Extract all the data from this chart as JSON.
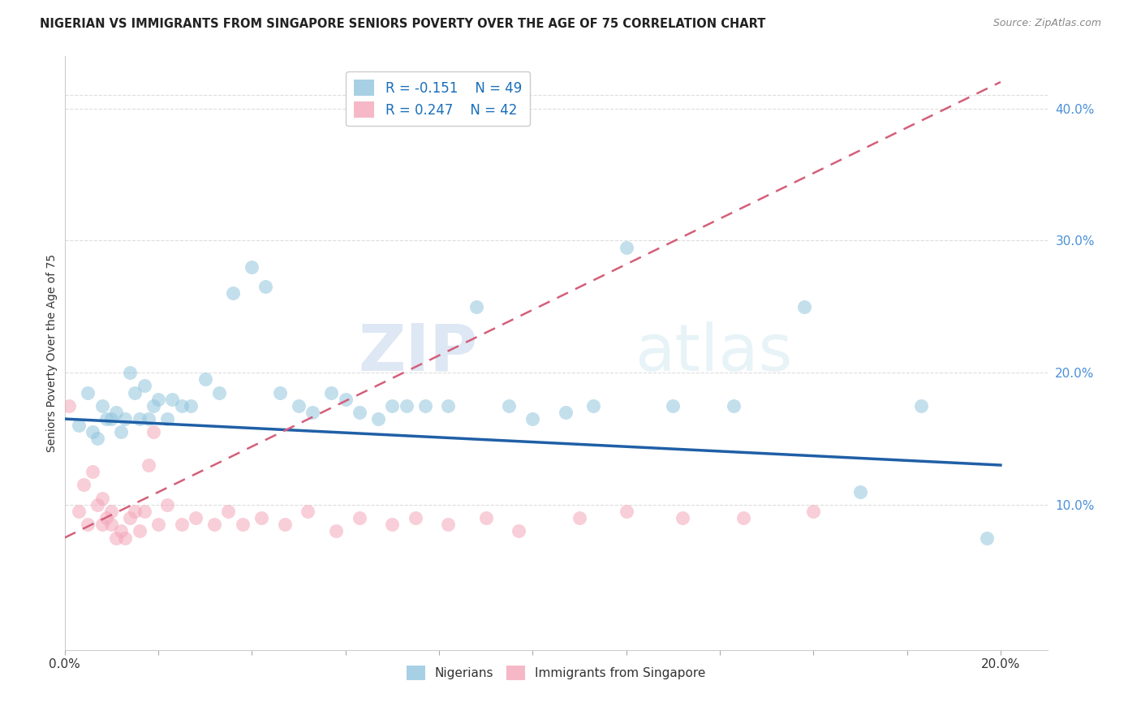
{
  "title": "NIGERIAN VS IMMIGRANTS FROM SINGAPORE SENIORS POVERTY OVER THE AGE OF 75 CORRELATION CHART",
  "source": "Source: ZipAtlas.com",
  "ylabel": "Seniors Poverty Over the Age of 75",
  "background_color": "#ffffff",
  "watermark_zip": "ZIP",
  "watermark_atlas": "atlas",
  "legend_r_nigerian": "R = -0.151",
  "legend_n_nigerian": "N = 49",
  "legend_r_singapore": "R = 0.247",
  "legend_n_singapore": "N = 42",
  "xlim": [
    0.0,
    0.21
  ],
  "ylim": [
    -0.01,
    0.44
  ],
  "right_yticks": [
    0.1,
    0.2,
    0.3,
    0.4
  ],
  "right_yticklabels": [
    "10.0%",
    "20.0%",
    "30.0%",
    "40.0%"
  ],
  "bottom_xticks": [
    0.0,
    0.02,
    0.04,
    0.06,
    0.08,
    0.1,
    0.12,
    0.14,
    0.16,
    0.18,
    0.2
  ],
  "nigerian_color": "#92c5de",
  "singapore_color": "#f4a7b9",
  "nigerian_line_color": "#1f5fa6",
  "singapore_line_color": "#d45f7a",
  "grid_color": "#dddddd",
  "nigerian_x": [
    0.003,
    0.005,
    0.006,
    0.007,
    0.008,
    0.009,
    0.01,
    0.011,
    0.012,
    0.013,
    0.014,
    0.015,
    0.016,
    0.017,
    0.018,
    0.019,
    0.02,
    0.022,
    0.023,
    0.025,
    0.027,
    0.03,
    0.033,
    0.036,
    0.04,
    0.043,
    0.046,
    0.05,
    0.053,
    0.057,
    0.06,
    0.063,
    0.067,
    0.07,
    0.073,
    0.077,
    0.082,
    0.088,
    0.095,
    0.1,
    0.107,
    0.113,
    0.12,
    0.13,
    0.143,
    0.158,
    0.17,
    0.183,
    0.197
  ],
  "nigerian_y": [
    0.16,
    0.185,
    0.155,
    0.15,
    0.175,
    0.165,
    0.165,
    0.17,
    0.155,
    0.165,
    0.2,
    0.185,
    0.165,
    0.19,
    0.165,
    0.175,
    0.18,
    0.165,
    0.18,
    0.175,
    0.175,
    0.195,
    0.185,
    0.26,
    0.28,
    0.265,
    0.185,
    0.175,
    0.17,
    0.185,
    0.18,
    0.17,
    0.165,
    0.175,
    0.175,
    0.175,
    0.175,
    0.25,
    0.175,
    0.165,
    0.17,
    0.175,
    0.295,
    0.175,
    0.175,
    0.25,
    0.11,
    0.175,
    0.075
  ],
  "singapore_x": [
    0.001,
    0.003,
    0.004,
    0.005,
    0.006,
    0.007,
    0.008,
    0.008,
    0.009,
    0.01,
    0.01,
    0.011,
    0.012,
    0.013,
    0.014,
    0.015,
    0.016,
    0.017,
    0.018,
    0.019,
    0.02,
    0.022,
    0.025,
    0.028,
    0.032,
    0.035,
    0.038,
    0.042,
    0.047,
    0.052,
    0.058,
    0.063,
    0.07,
    0.075,
    0.082,
    0.09,
    0.097,
    0.11,
    0.12,
    0.132,
    0.145,
    0.16
  ],
  "singapore_y": [
    0.175,
    0.095,
    0.115,
    0.085,
    0.125,
    0.1,
    0.105,
    0.085,
    0.09,
    0.085,
    0.095,
    0.075,
    0.08,
    0.075,
    0.09,
    0.095,
    0.08,
    0.095,
    0.13,
    0.155,
    0.085,
    0.1,
    0.085,
    0.09,
    0.085,
    0.095,
    0.085,
    0.09,
    0.085,
    0.095,
    0.08,
    0.09,
    0.085,
    0.09,
    0.085,
    0.09,
    0.08,
    0.09,
    0.095,
    0.09,
    0.09,
    0.095
  ],
  "nigerian_trendline_x0": 0.0,
  "nigerian_trendline_y0": 0.165,
  "nigerian_trendline_x1": 0.2,
  "nigerian_trendline_y1": 0.13,
  "singapore_trendline_x0": 0.0,
  "singapore_trendline_y0": 0.075,
  "singapore_trendline_x1": 0.2,
  "singapore_trendline_y1": 0.42
}
